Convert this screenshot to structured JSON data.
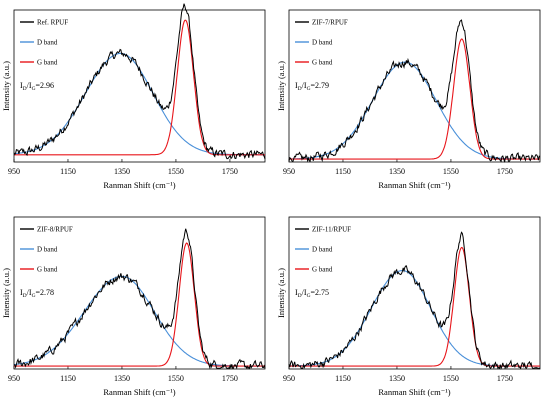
{
  "chart_data": [
    {
      "type": "line",
      "legend": [
        "Ref. RPUF",
        "D band",
        "G band"
      ],
      "ratio_label": "I",
      "ratio_sub_d": "D",
      "ratio_sub_g": "G",
      "ratio_value": "=2.96",
      "xlabel": "Ranman Shift (cm⁻¹)",
      "ylabel": "Intensity (a.u.)",
      "xticks": [
        "950",
        "1150",
        "1350",
        "1550",
        "1750"
      ],
      "xlim": [
        950,
        1880
      ],
      "ylim": [
        0,
        1.05
      ],
      "baseline": 0.05,
      "d_band": {
        "center": 1345,
        "height": 0.7,
        "sigma_left": 130,
        "sigma_right": 120
      },
      "g_band": {
        "center": 1585,
        "height": 0.93,
        "sigma": 30
      },
      "colors": {
        "raw": "#000000",
        "d": "#4a90d9",
        "g": "#e8161b"
      }
    },
    {
      "type": "line",
      "legend": [
        "ZIF-7/RPUF",
        "D band",
        "G band"
      ],
      "ratio_label": "I",
      "ratio_sub_d": "D",
      "ratio_sub_g": "G",
      "ratio_value": "=2.79",
      "xlabel": "Ranman Shift (cm⁻¹)",
      "ylabel": "Intensity (a.u.)",
      "xticks": [
        "950",
        "1150",
        "1350",
        "1550",
        "1750"
      ],
      "xlim": [
        950,
        1880
      ],
      "ylim": [
        0,
        1.05
      ],
      "baseline": 0.02,
      "d_band": {
        "center": 1380,
        "height": 0.67,
        "sigma_left": 120,
        "sigma_right": 115
      },
      "g_band": {
        "center": 1590,
        "height": 0.83,
        "sigma": 30
      },
      "colors": {
        "raw": "#000000",
        "d": "#4a90d9",
        "g": "#e8161b"
      }
    },
    {
      "type": "line",
      "legend": [
        "ZIF-8/RPUF",
        "D band",
        "G band"
      ],
      "ratio_label": "I",
      "ratio_sub_d": "D",
      "ratio_sub_g": "G",
      "ratio_value": "=2.78",
      "xlabel": "Ranman Shift (cm⁻¹)",
      "ylabel": "Intensity (a.u.)",
      "xticks": [
        "950",
        "1150",
        "1350",
        "1550",
        "1750"
      ],
      "xlim": [
        950,
        1880
      ],
      "ylim": [
        0,
        1.05
      ],
      "baseline": 0.02,
      "d_band": {
        "center": 1350,
        "height": 0.62,
        "sigma_left": 140,
        "sigma_right": 120
      },
      "g_band": {
        "center": 1590,
        "height": 0.85,
        "sigma": 28
      },
      "colors": {
        "raw": "#000000",
        "d": "#4a90d9",
        "g": "#e8161b"
      }
    },
    {
      "type": "line",
      "legend": [
        "ZIF-11/RPUF",
        "D band",
        "G band"
      ],
      "ratio_label": "I",
      "ratio_sub_d": "D",
      "ratio_sub_g": "G",
      "ratio_value": "=2.75",
      "xlabel": "Ranman Shift (cm⁻¹)",
      "ylabel": "Intensity (a.u.)",
      "xticks": [
        "950",
        "1150",
        "1350",
        "1550",
        "1750"
      ],
      "xlim": [
        950,
        1880
      ],
      "ylim": [
        0,
        1.05
      ],
      "baseline": 0.02,
      "d_band": {
        "center": 1370,
        "height": 0.66,
        "sigma_left": 115,
        "sigma_right": 105
      },
      "g_band": {
        "center": 1590,
        "height": 0.82,
        "sigma": 28
      },
      "colors": {
        "raw": "#000000",
        "d": "#4a90d9",
        "g": "#e8161b"
      }
    }
  ]
}
